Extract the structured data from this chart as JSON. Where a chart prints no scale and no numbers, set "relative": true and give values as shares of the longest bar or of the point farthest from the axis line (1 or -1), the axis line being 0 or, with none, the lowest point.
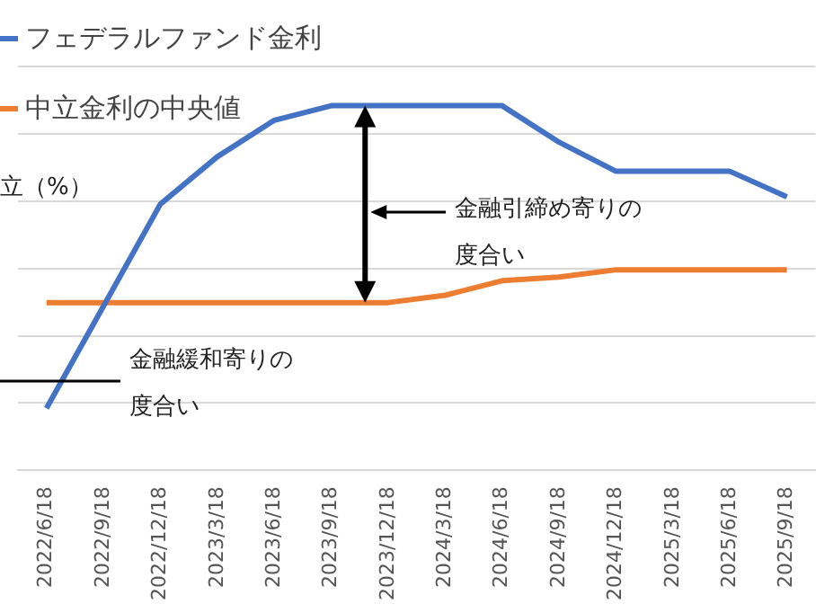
{
  "chart_data": {
    "type": "line",
    "relative": true,
    "categories": [
      "2022/6/18",
      "2022/9/18",
      "2022/12/18",
      "2023/3/18",
      "2023/6/18",
      "2023/9/18",
      "2023/12/18",
      "2024/3/18",
      "2024/6/18",
      "2024/9/18",
      "2024/12/18",
      "2025/3/18",
      "2025/6/18",
      "2025/9/18"
    ],
    "series": [
      {
        "name": "フェデラルファンド金利",
        "color": "#4472c4",
        "values": [
          0.17,
          0.45,
          0.73,
          0.86,
          0.96,
          1,
          1,
          1,
          1,
          0.9,
          0.82,
          0.82,
          0.82,
          0.75
        ]
      },
      {
        "name": "中立金利の中央値",
        "color": "#ed7d31",
        "values": [
          0.46,
          0.46,
          0.46,
          0.46,
          0.46,
          0.46,
          0.46,
          0.48,
          0.52,
          0.53,
          0.55,
          0.55,
          0.55,
          0.55
        ]
      }
    ],
    "annotations": [
      "立（%）",
      "金融引締め寄りの度合い",
      "金融緩和寄りの度合い"
    ],
    "grid": "y",
    "legend": "top left",
    "marker": "none",
    "line_style": "solid"
  }
}
